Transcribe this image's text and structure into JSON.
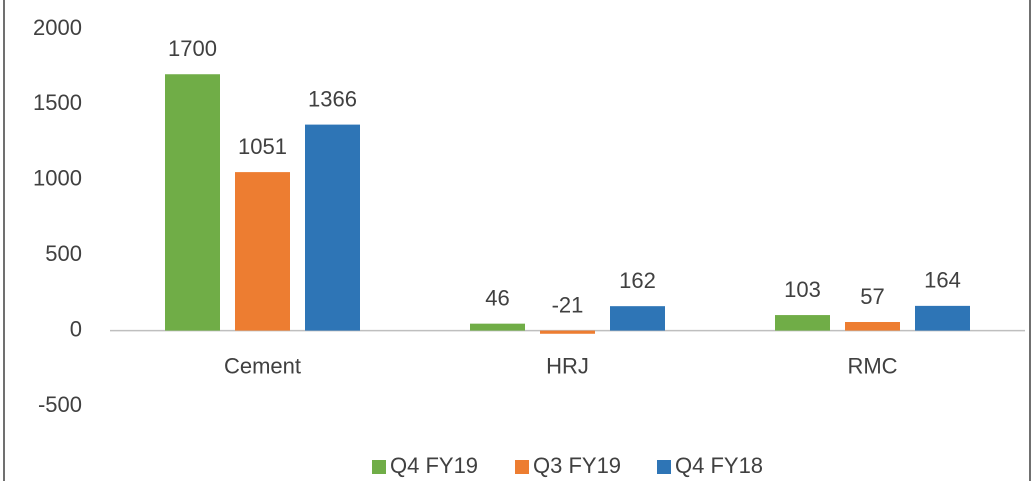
{
  "chart_data": {
    "type": "bar",
    "categories": [
      "Cement",
      "HRJ",
      "RMC"
    ],
    "series": [
      {
        "name": "Q4 FY19",
        "color": "#70ad47",
        "values": [
          1700,
          46,
          103
        ]
      },
      {
        "name": "Q3 FY19",
        "color": "#ed7d31",
        "values": [
          1051,
          -21,
          57
        ]
      },
      {
        "name": "Q4 FY18",
        "color": "#2e75b6",
        "values": [
          1366,
          162,
          164
        ]
      }
    ],
    "ylim": [
      -500,
      2000
    ],
    "yticks": [
      -500,
      0,
      500,
      1000,
      1500,
      2000
    ],
    "grid": false,
    "legend": "bottom"
  }
}
